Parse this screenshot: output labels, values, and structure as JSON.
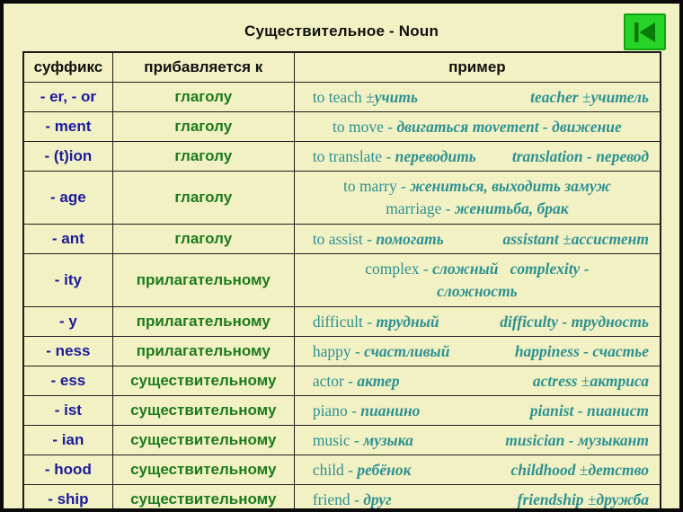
{
  "title": "Существительное - Noun",
  "nav_button": {
    "icon": "skip-to-start-icon"
  },
  "colors": {
    "background": "#f2f1c4",
    "frame": "#0a0a0a",
    "table_border": "#1d1d1d",
    "title_text": "#111111",
    "suffix_text": "#1b1b9b",
    "pos_text": "#1d7a1d",
    "example_text": "#2e9191",
    "button_green": "#27d327",
    "button_border": "#0fa40f",
    "button_icon": "#0a7a0a"
  },
  "table": {
    "headers": [
      "суффикс",
      "прибавляется к",
      "пример"
    ],
    "rows": [
      {
        "suffix": "- er, - or",
        "attaches_to": "глаголу",
        "tall": false,
        "example": {
          "layout": "spread",
          "groups": [
            [
              {
                "t": "to teach ±"
              },
              {
                "t": "учить",
                "em": true
              }
            ],
            [
              {
                "t": "teacher",
                "em": true
              },
              {
                "t": " ±"
              },
              {
                "t": "учитель",
                "em": true
              }
            ]
          ]
        }
      },
      {
        "suffix": "- ment",
        "attaches_to": "глаголу",
        "tall": false,
        "example": {
          "layout": "center",
          "groups": [
            [
              {
                "t": "to move - "
              },
              {
                "t": "двигаться",
                "em": true
              },
              {
                "t": " "
              },
              {
                "t": "movement - движение",
                "em": true
              }
            ]
          ]
        }
      },
      {
        "suffix": "- (t)ion",
        "attaches_to": "глаголу",
        "tall": false,
        "example": {
          "layout": "spread",
          "groups": [
            [
              {
                "t": "to translate - "
              },
              {
                "t": "переводить",
                "em": true
              }
            ],
            [
              {
                "t": "translation - перевод",
                "em": true
              }
            ]
          ]
        }
      },
      {
        "suffix": "- age",
        "attaches_to": "глаголу",
        "tall": true,
        "example": {
          "layout": "center",
          "groups": [
            [
              {
                "t": "to marry - "
              },
              {
                "t": "жениться, выходить замуж",
                "em": true
              }
            ],
            [
              {
                "t": "marriage - "
              },
              {
                "t": "женитьба, брак",
                "em": true
              }
            ]
          ]
        }
      },
      {
        "suffix": "- ant",
        "attaches_to": "глаголу",
        "tall": false,
        "example": {
          "layout": "spread",
          "groups": [
            [
              {
                "t": "to assist - "
              },
              {
                "t": "помогать",
                "em": true
              }
            ],
            [
              {
                "t": "assistant",
                "em": true
              },
              {
                "t": " ±"
              },
              {
                "t": "ассистент",
                "em": true
              }
            ]
          ]
        }
      },
      {
        "suffix": "- ity",
        "attaches_to": "прилагательному",
        "tall": true,
        "example": {
          "layout": "center",
          "groups": [
            [
              {
                "t": "complex - "
              },
              {
                "t": "сложный",
                "em": true
              },
              {
                "t": "   "
              },
              {
                "t": "complexity -",
                "em": true
              }
            ],
            [
              {
                "t": "сложность",
                "em": true
              }
            ]
          ]
        }
      },
      {
        "suffix": "- y",
        "attaches_to": "прилагательному",
        "tall": false,
        "example": {
          "layout": "spread",
          "groups": [
            [
              {
                "t": "difficult - "
              },
              {
                "t": "трудный",
                "em": true
              }
            ],
            [
              {
                "t": "difficulty - трудность",
                "em": true
              }
            ]
          ]
        }
      },
      {
        "suffix": "- ness",
        "attaches_to": "прилагательному",
        "tall": false,
        "example": {
          "layout": "spread",
          "groups": [
            [
              {
                "t": "happy - "
              },
              {
                "t": "счастливый",
                "em": true
              }
            ],
            [
              {
                "t": "happiness - счастье",
                "em": true
              }
            ]
          ]
        }
      },
      {
        "suffix": "- ess",
        "attaches_to": "существительному",
        "tall": false,
        "example": {
          "layout": "spread",
          "groups": [
            [
              {
                "t": "actor - "
              },
              {
                "t": "актер",
                "em": true
              }
            ],
            [
              {
                "t": "actress",
                "em": true
              },
              {
                "t": " ±"
              },
              {
                "t": "актриса",
                "em": true
              }
            ]
          ]
        }
      },
      {
        "suffix": "- ist",
        "attaches_to": "существительному",
        "tall": false,
        "example": {
          "layout": "spread",
          "groups": [
            [
              {
                "t": "piano - "
              },
              {
                "t": "пианино",
                "em": true
              }
            ],
            [
              {
                "t": "pianist - пианист",
                "em": true
              }
            ]
          ]
        }
      },
      {
        "suffix": "- ian",
        "attaches_to": "существительному",
        "tall": false,
        "example": {
          "layout": "spread",
          "groups": [
            [
              {
                "t": "music - "
              },
              {
                "t": "музыка",
                "em": true
              }
            ],
            [
              {
                "t": "musician - музыкант",
                "em": true
              }
            ]
          ]
        }
      },
      {
        "suffix": "- hood",
        "attaches_to": "существительному",
        "tall": false,
        "example": {
          "layout": "spread",
          "groups": [
            [
              {
                "t": "child - "
              },
              {
                "t": "ребёнок",
                "em": true
              }
            ],
            [
              {
                "t": "childhood",
                "em": true
              },
              {
                "t": " ±"
              },
              {
                "t": "детство",
                "em": true
              }
            ]
          ]
        }
      },
      {
        "suffix": "- ship",
        "attaches_to": "существительному",
        "tall": false,
        "example": {
          "layout": "spread",
          "groups": [
            [
              {
                "t": "friend - "
              },
              {
                "t": "друг",
                "em": true
              }
            ],
            [
              {
                "t": "friendship",
                "em": true
              },
              {
                "t": " ±"
              },
              {
                "t": "дружба",
                "em": true
              }
            ]
          ]
        }
      }
    ]
  }
}
